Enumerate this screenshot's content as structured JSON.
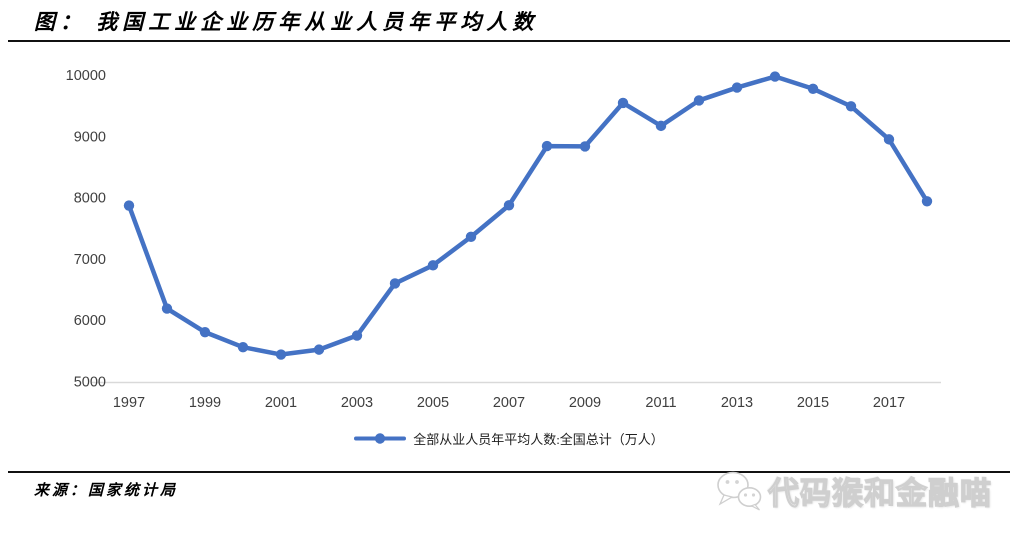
{
  "header": {
    "title": "图： 我国工业企业历年从业人员年平均人数"
  },
  "legend": {
    "label": "全部从业人员年平均人数:全国总计（万人）"
  },
  "footer": {
    "source": "来源：国家统计局",
    "watermark_text": "代码猴和金融喵"
  },
  "colors": {
    "line": "#4472C4",
    "axis_label": "#3f3f3f",
    "axis_line": "#d9d9d9",
    "watermark_gray": "#cfcfcf"
  },
  "chart_data": {
    "type": "line",
    "title": "图： 我国工业企业历年从业人员年平均人数",
    "x": [
      1997,
      1998,
      1999,
      2000,
      2001,
      2002,
      2003,
      2004,
      2005,
      2006,
      2007,
      2008,
      2009,
      2010,
      2011,
      2012,
      2013,
      2014,
      2015,
      2016,
      2017,
      2018
    ],
    "series": [
      {
        "name": "全部从业人员年平均人数:全国总计（万人）",
        "values": [
          7870,
          6190,
          5805,
          5560,
          5440,
          5520,
          5750,
          6600,
          6895,
          7360,
          7875,
          8840,
          8835,
          9545,
          9170,
          9585,
          9795,
          9975,
          9775,
          9490,
          8950,
          7940
        ]
      }
    ],
    "x_tick_labels": [
      "1997",
      "1999",
      "2001",
      "2003",
      "2005",
      "2007",
      "2009",
      "2011",
      "2013",
      "2015",
      "2017"
    ],
    "y_ticks": [
      5000,
      6000,
      7000,
      8000,
      9000,
      10000
    ],
    "ylim": [
      5000,
      10000
    ],
    "xlabel": "",
    "ylabel": "",
    "grid": false,
    "legend_position": "bottom",
    "marker": "circle"
  }
}
